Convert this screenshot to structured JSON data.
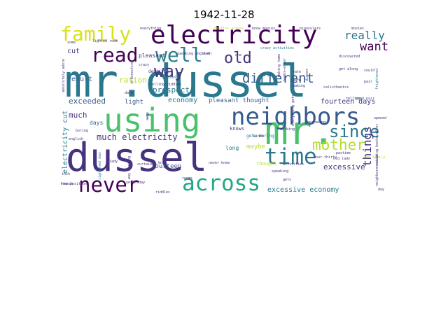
{
  "chart_data": {
    "type": "wordcloud",
    "title": "1942-11-28",
    "background": "#ffffff",
    "palette": "viridis",
    "words": [
      {
        "text": "mr.dussel",
        "weight": 1.0,
        "color": "#2a788e"
      },
      {
        "text": "dussel",
        "weight": 0.92,
        "color": "#46327e"
      },
      {
        "text": "mr.",
        "weight": 0.72,
        "color": "#4ac16d"
      },
      {
        "text": "using",
        "weight": 0.62,
        "color": "#4ac16d"
      },
      {
        "text": "electricity",
        "weight": 0.56,
        "color": "#440154"
      },
      {
        "text": "neighbors",
        "weight": 0.52,
        "color": "#365c8d"
      },
      {
        "text": "time",
        "weight": 0.46,
        "color": "#2a788e"
      },
      {
        "text": "across",
        "weight": 0.46,
        "color": "#22a884"
      },
      {
        "text": "never",
        "weight": 0.42,
        "color": "#440154"
      },
      {
        "text": "family",
        "weight": 0.4,
        "color": "#d8e219"
      },
      {
        "text": "read",
        "weight": 0.4,
        "color": "#440154"
      },
      {
        "text": "well",
        "weight": 0.4,
        "color": "#277f8e"
      },
      {
        "text": "way",
        "weight": 0.36,
        "color": "#46327e"
      },
      {
        "text": "since",
        "weight": 0.34,
        "color": "#2a788e"
      },
      {
        "text": "old",
        "weight": 0.3,
        "color": "#46327e"
      },
      {
        "text": "mother",
        "weight": 0.3,
        "color": "#b5de2b"
      },
      {
        "text": "different",
        "weight": 0.26,
        "color": "#365c8d"
      },
      {
        "text": "want",
        "weight": 0.26,
        "color": "#440154"
      },
      {
        "text": "really",
        "weight": 0.24,
        "color": "#2a788e"
      },
      {
        "text": "things",
        "weight": 0.22,
        "color": "#46327e"
      },
      {
        "text": "much electricity",
        "weight": 0.16,
        "color": "#46327e"
      },
      {
        "text": "exceeded",
        "weight": 0.14,
        "color": "#365c8d"
      },
      {
        "text": "much",
        "weight": 0.14,
        "color": "#46327e"
      },
      {
        "text": "prospect",
        "weight": 0.14,
        "color": "#2a788e"
      },
      {
        "text": "ration",
        "weight": 0.14,
        "color": "#b5de2b"
      },
      {
        "text": "excessive",
        "weight": 0.14,
        "color": "#46327e"
      },
      {
        "text": "excessive economy",
        "weight": 0.12,
        "color": "#2a788e"
      },
      {
        "text": "economy",
        "weight": 0.12,
        "color": "#2a788e"
      },
      {
        "text": "fourteen days",
        "weight": 0.12,
        "color": "#46327e"
      },
      {
        "text": "electricity cut",
        "weight": 0.12,
        "color": "#2a788e"
      },
      {
        "text": "result",
        "weight": 0.12,
        "color": "#365c8d"
      },
      {
        "text": "cut",
        "weight": 0.12,
        "color": "#46327e"
      },
      {
        "text": "pleasant thought",
        "weight": 0.1,
        "color": "#365c8d"
      },
      {
        "text": "fourteen",
        "weight": 0.1,
        "color": "#365c8d"
      },
      {
        "text": "light",
        "weight": 0.1,
        "color": "#365c8d"
      },
      {
        "text": "days",
        "weight": 0.1,
        "color": "#365c8d"
      },
      {
        "text": "long",
        "weight": 0.1,
        "color": "#2a788e"
      },
      {
        "text": "maybe",
        "weight": 0.1,
        "color": "#b5de2b"
      },
      {
        "text": "pleasant",
        "weight": 0.1,
        "color": "#46327e"
      },
      {
        "text": "knows",
        "weight": 0.09,
        "color": "#46327e"
      },
      {
        "text": "thought",
        "weight": 0.09,
        "color": "#b5de2b"
      },
      {
        "text": "dentist",
        "weight": 0.08,
        "color": "#46327e"
      },
      {
        "text": "speaking english",
        "weight": 0.07,
        "color": "#46327e"
      },
      {
        "text": "crazy activities",
        "weight": 0.07,
        "color": "#2a788e"
      },
      {
        "text": "binoculars",
        "weight": 0.07,
        "color": "#46327e"
      },
      {
        "text": "movies",
        "weight": 0.07,
        "color": "#46327e"
      },
      {
        "text": "calisthenics",
        "weight": 0.07,
        "color": "#46327e"
      },
      {
        "text": "get along",
        "weight": 0.07,
        "color": "#46327e"
      },
      {
        "text": "telling riddles",
        "weight": 0.07,
        "color": "#46327e"
      },
      {
        "text": "gets boring",
        "weight": 0.07,
        "color": "#2a788e"
      },
      {
        "text": "reviewing",
        "weight": 0.07,
        "color": "#46327e"
      },
      {
        "text": "curtains",
        "weight": 0.07,
        "color": "#46327e"
      },
      {
        "text": "everything",
        "weight": 0.06,
        "color": "#46327e"
      },
      {
        "text": "dentist across",
        "weight": 0.06,
        "color": "#b5de2b"
      },
      {
        "text": "frightened",
        "weight": 0.06,
        "color": "#2a788e"
      },
      {
        "text": "four-thirty",
        "weight": 0.06,
        "color": "#46327e"
      },
      {
        "text": "pastime",
        "weight": 0.06,
        "color": "#46327e"
      },
      {
        "text": "good pair",
        "weight": 0.06,
        "color": "#2a788e"
      },
      {
        "text": "old lady",
        "weight": 0.06,
        "color": "#46327e"
      },
      {
        "text": "new position",
        "weight": 0.06,
        "color": "#46327e"
      },
      {
        "text": "riddles",
        "weight": 0.06,
        "color": "#46327e"
      },
      {
        "text": "yesterday",
        "weight": 0.06,
        "color": "#46327e"
      },
      {
        "text": "english",
        "weight": 0.06,
        "color": "#46327e"
      },
      {
        "text": "french",
        "weight": 0.06,
        "color": "#46327e"
      },
      {
        "text": "boring",
        "weight": 0.06,
        "color": "#46327e"
      },
      {
        "text": "lighted",
        "weight": 0.06,
        "color": "#2a788e"
      },
      {
        "text": "interesting",
        "weight": 0.06,
        "color": "#46327e"
      },
      {
        "text": "speaking",
        "weight": 0.06,
        "color": "#46327e"
      },
      {
        "text": "activities",
        "weight": 0.06,
        "color": "#46327e"
      },
      {
        "text": "making",
        "weight": 0.06,
        "color": "#46327e"
      },
      {
        "text": "working",
        "weight": 0.06,
        "color": "#46327e"
      },
      {
        "text": "opened",
        "weight": 0.06,
        "color": "#46327e"
      },
      {
        "text": "telling",
        "weight": 0.06,
        "color": "#46327e"
      },
      {
        "text": "kinds",
        "weight": 0.06,
        "color": "#46327e"
      },
      {
        "text": "crazy",
        "weight": 0.06,
        "color": "#46327e"
      },
      {
        "text": "harm",
        "weight": 0.06,
        "color": "#46327e"
      },
      {
        "text": "rate",
        "weight": 0.06,
        "color": "#46327e"
      },
      {
        "text": "knew",
        "weight": 0.06,
        "color": "#46327e"
      },
      {
        "text": "dark",
        "weight": 0.06,
        "color": "#46327e"
      },
      {
        "text": "lady",
        "weight": 0.06,
        "color": "#46327e"
      },
      {
        "text": "inch",
        "weight": 0.06,
        "color": "#46327e"
      },
      {
        "text": "some",
        "weight": 0.06,
        "color": "#46327e"
      },
      {
        "text": "rooms",
        "weight": 0.06,
        "color": "#46327e"
      },
      {
        "text": "gets",
        "weight": 0.06,
        "color": "#46327e"
      },
      {
        "text": "one family",
        "weight": 0.06,
        "color": "#b5de2b"
      },
      {
        "text": "day",
        "weight": 0.06,
        "color": "#46327e"
      },
      {
        "text": "pair",
        "weight": 0.06,
        "color": "#46327e"
      },
      {
        "text": "could",
        "weight": 0.06,
        "color": "#46327e"
      },
      {
        "text": "even",
        "weight": 0.06,
        "color": "#46327e"
      },
      {
        "text": "one",
        "weight": 0.06,
        "color": "#46327e"
      },
      {
        "text": "never knew",
        "weight": 0.06,
        "color": "#46327e"
      },
      {
        "text": "discovered",
        "weight": 0.06,
        "color": "#46327e"
      },
      {
        "text": "neighbors could",
        "weight": 0.06,
        "color": "#46327e"
      },
      {
        "text": "reviewing books—after",
        "weight": 0.06,
        "color": "#46327e"
      },
      {
        "text": "absolutely adore",
        "weight": 0.06,
        "color": "#46327e"
      },
      {
        "text": "frightened dad",
        "weight": 0.06,
        "color": "#2a788e"
      },
      {
        "text": "books—after",
        "weight": 0.06,
        "color": "#46327e"
      },
      {
        "text": "making home",
        "weight": 0.06,
        "color": "#46327e"
      },
      {
        "text": "everything gets",
        "weight": 0.06,
        "color": "#46327e"
      },
      {
        "text": "way working",
        "weight": 0.06,
        "color": "#46327e"
      },
      {
        "text": "lighted room",
        "weight": 0.06,
        "color": "#46327e"
      },
      {
        "text": "know movies",
        "weight": 0.06,
        "color": "#46327e"
      },
      {
        "text": "dinner",
        "weight": 0.06,
        "color": "#46327e"
      },
      {
        "text": "away",
        "weight": 0.06,
        "color": "#46327e"
      }
    ]
  }
}
